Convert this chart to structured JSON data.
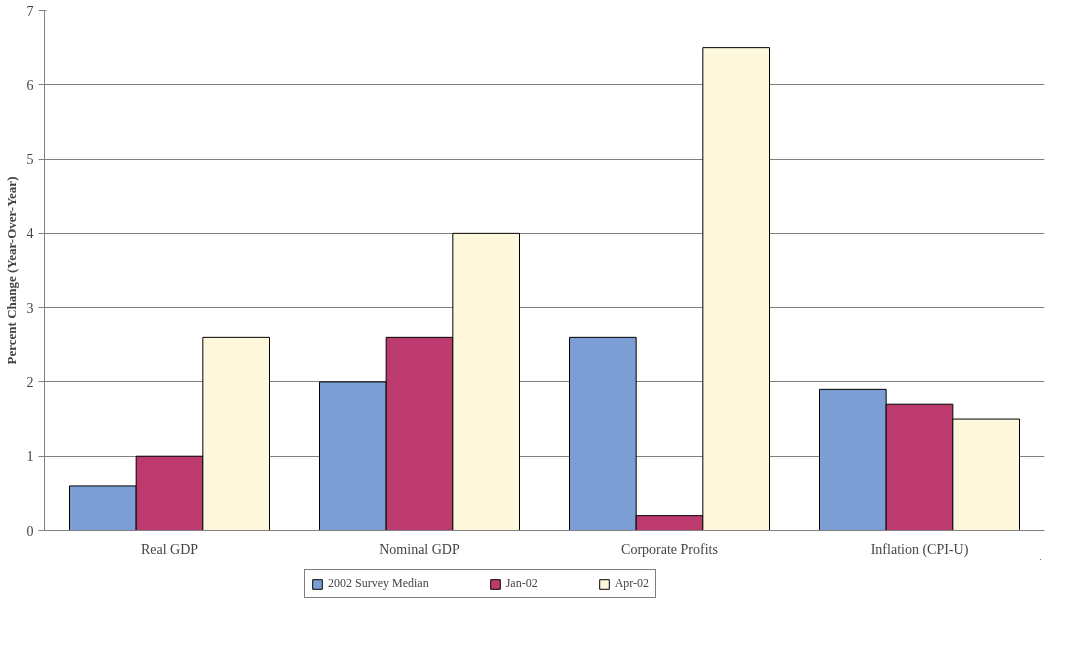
{
  "chart_data": {
    "type": "bar",
    "ylabel": "Percent Change (Year-Over-Year)",
    "categories": [
      "Real GDP",
      "Nominal GDP",
      "Corporate Profits",
      "Inflation (CPI-U)"
    ],
    "series": [
      {
        "name": "2002 Survey Median",
        "color": "#7b9fd4",
        "values": [
          0.6,
          2.0,
          2.6,
          1.9
        ]
      },
      {
        "name": "Jan-02",
        "color": "#bd3a6f",
        "values": [
          1.0,
          2.6,
          0.2,
          1.7
        ]
      },
      {
        "name": "Apr-02",
        "color": "#fdf8dc",
        "values": [
          2.6,
          4.0,
          6.5,
          1.5
        ]
      }
    ],
    "ylim": [
      0,
      7
    ],
    "yticks": [
      0,
      1,
      2,
      3,
      4,
      5,
      6,
      7
    ],
    "grid": "y",
    "legend": "bottom"
  }
}
